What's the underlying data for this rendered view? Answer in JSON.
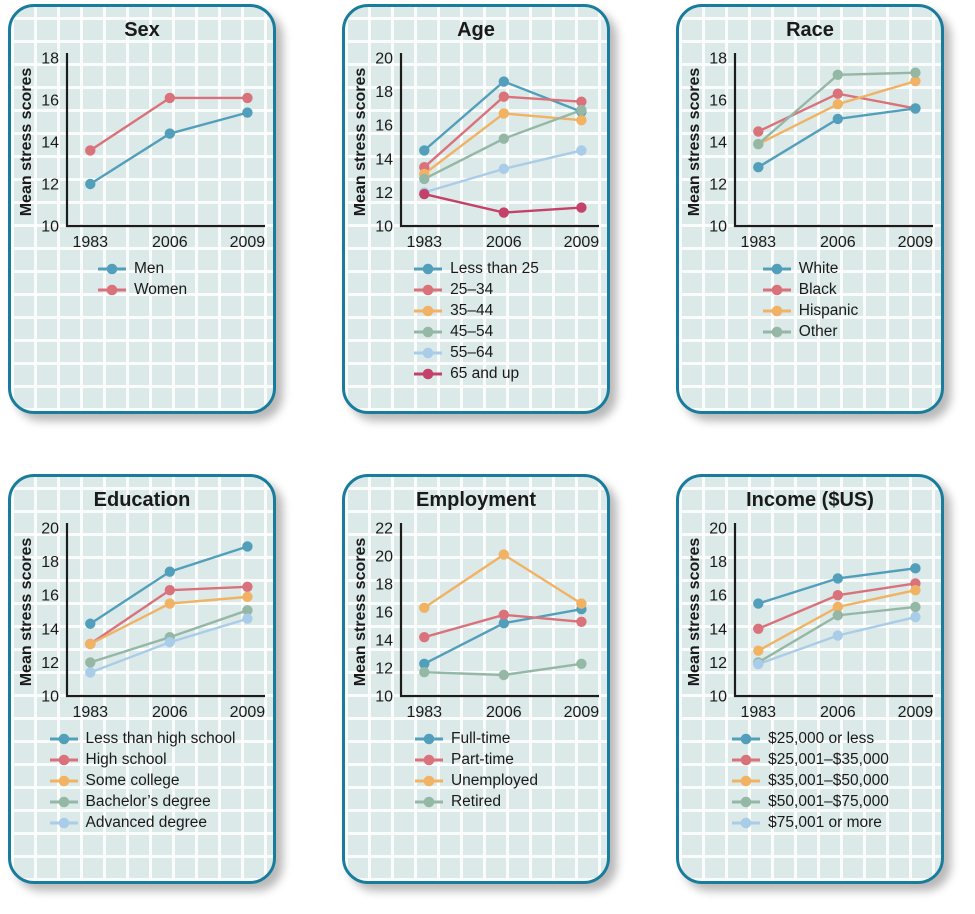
{
  "figure": {
    "description": "Six line charts of mean stress scores over time by demographic group",
    "shared_ylabel": "Mean stress scores",
    "shared_categories": [
      "1983",
      "2006",
      "2009"
    ]
  },
  "style": {
    "panel_background": "#dce9e9",
    "panel_border": "#1a7c9c",
    "grid_line": "#ffffff",
    "axis_color": "#1c1c1c",
    "text_color": "#1a1a1a",
    "palette": {
      "teal": "#529fbc",
      "red": "#d9727a",
      "orange": "#f1b264",
      "sage": "#95b8a6",
      "lightblue": "#a9cde8",
      "crimson": "#c44169"
    }
  },
  "chart_data": [
    {
      "type": "line",
      "title": "Sex",
      "ylabel": "Mean stress scores",
      "categories": [
        "1983",
        "2006",
        "2009"
      ],
      "ylim": [
        10,
        18
      ],
      "ytick_step": 2,
      "grid": true,
      "legend_position": "bottom",
      "series": [
        {
          "name": "Men",
          "color": "#529fbc",
          "values": [
            12.0,
            14.4,
            15.4
          ]
        },
        {
          "name": "Women",
          "color": "#d9727a",
          "values": [
            13.6,
            16.1,
            16.1
          ]
        }
      ]
    },
    {
      "type": "line",
      "title": "Age",
      "ylabel": "Mean stress scores",
      "categories": [
        "1983",
        "2006",
        "2009"
      ],
      "ylim": [
        10,
        20
      ],
      "ytick_step": 2,
      "grid": true,
      "legend_position": "bottom",
      "series": [
        {
          "name": "Less than 25",
          "color": "#529fbc",
          "values": [
            14.5,
            18.6,
            16.8
          ]
        },
        {
          "name": "25–34",
          "color": "#d9727a",
          "values": [
            13.5,
            17.7,
            17.4
          ]
        },
        {
          "name": "35–44",
          "color": "#f1b264",
          "values": [
            13.1,
            16.7,
            16.3
          ]
        },
        {
          "name": "45–54",
          "color": "#95b8a6",
          "values": [
            12.8,
            15.2,
            16.9
          ]
        },
        {
          "name": "55–64",
          "color": "#a9cde8",
          "values": [
            12.0,
            13.4,
            14.5
          ]
        },
        {
          "name": "65 and up",
          "color": "#c44169",
          "values": [
            11.9,
            10.8,
            11.1
          ]
        }
      ]
    },
    {
      "type": "line",
      "title": "Race",
      "ylabel": "Mean stress scores",
      "categories": [
        "1983",
        "2006",
        "2009"
      ],
      "ylim": [
        10,
        18
      ],
      "ytick_step": 2,
      "grid": true,
      "legend_position": "bottom",
      "series": [
        {
          "name": "White",
          "color": "#529fbc",
          "values": [
            12.8,
            15.1,
            15.6
          ],
          "zorder": 5
        },
        {
          "name": "Black",
          "color": "#d9727a",
          "values": [
            14.5,
            16.3,
            15.6
          ]
        },
        {
          "name": "Hispanic",
          "color": "#f1b264",
          "values": [
            13.9,
            15.8,
            16.9
          ]
        },
        {
          "name": "Other",
          "color": "#95b8a6",
          "values": [
            13.9,
            17.2,
            17.3
          ]
        }
      ]
    },
    {
      "type": "line",
      "title": "Education",
      "ylabel": "Mean stress scores",
      "categories": [
        "1983",
        "2006",
        "2009"
      ],
      "ylim": [
        10,
        20
      ],
      "ytick_step": 2,
      "grid": true,
      "legend_position": "bottom",
      "series": [
        {
          "name": "Less than high school",
          "color": "#529fbc",
          "values": [
            14.3,
            17.4,
            18.9
          ]
        },
        {
          "name": "High school",
          "color": "#d9727a",
          "values": [
            13.1,
            16.3,
            16.5
          ]
        },
        {
          "name": "Some college",
          "color": "#f1b264",
          "values": [
            13.1,
            15.5,
            15.9
          ]
        },
        {
          "name": "Bachelor’s degree",
          "color": "#95b8a6",
          "values": [
            12.0,
            13.5,
            15.1
          ]
        },
        {
          "name": "Advanced degree",
          "color": "#a9cde8",
          "values": [
            11.4,
            13.2,
            14.6
          ]
        }
      ]
    },
    {
      "type": "line",
      "title": "Employment",
      "ylabel": "Mean stress scores",
      "categories": [
        "1983",
        "2006",
        "2009"
      ],
      "ylim": [
        10,
        22
      ],
      "ytick_step": 2,
      "grid": true,
      "legend_position": "bottom",
      "series": [
        {
          "name": "Full-time",
          "color": "#529fbc",
          "values": [
            12.3,
            15.2,
            16.2
          ]
        },
        {
          "name": "Part-time",
          "color": "#d9727a",
          "values": [
            14.2,
            15.8,
            15.3
          ]
        },
        {
          "name": "Unemployed",
          "color": "#f1b264",
          "values": [
            16.3,
            20.1,
            16.6
          ]
        },
        {
          "name": "Retired",
          "color": "#95b8a6",
          "values": [
            11.7,
            11.5,
            12.3
          ]
        }
      ]
    },
    {
      "type": "line",
      "title": "Income ($US)",
      "ylabel": "Mean stress scores",
      "categories": [
        "1983",
        "2006",
        "2009"
      ],
      "ylim": [
        10,
        20
      ],
      "ytick_step": 2,
      "grid": true,
      "legend_position": "bottom",
      "series": [
        {
          "name": "$25,000 or less",
          "color": "#529fbc",
          "values": [
            15.5,
            17.0,
            17.6
          ]
        },
        {
          "name": "$25,001–$35,000",
          "color": "#d9727a",
          "values": [
            14.0,
            16.0,
            16.7
          ]
        },
        {
          "name": "$35,001–$50,000",
          "color": "#f1b264",
          "values": [
            12.7,
            15.3,
            16.3
          ]
        },
        {
          "name": "$50,001–$75,000",
          "color": "#95b8a6",
          "values": [
            12.0,
            14.8,
            15.3
          ]
        },
        {
          "name": "$75,001 or more",
          "color": "#a9cde8",
          "values": [
            11.9,
            13.6,
            14.7
          ]
        }
      ]
    }
  ]
}
